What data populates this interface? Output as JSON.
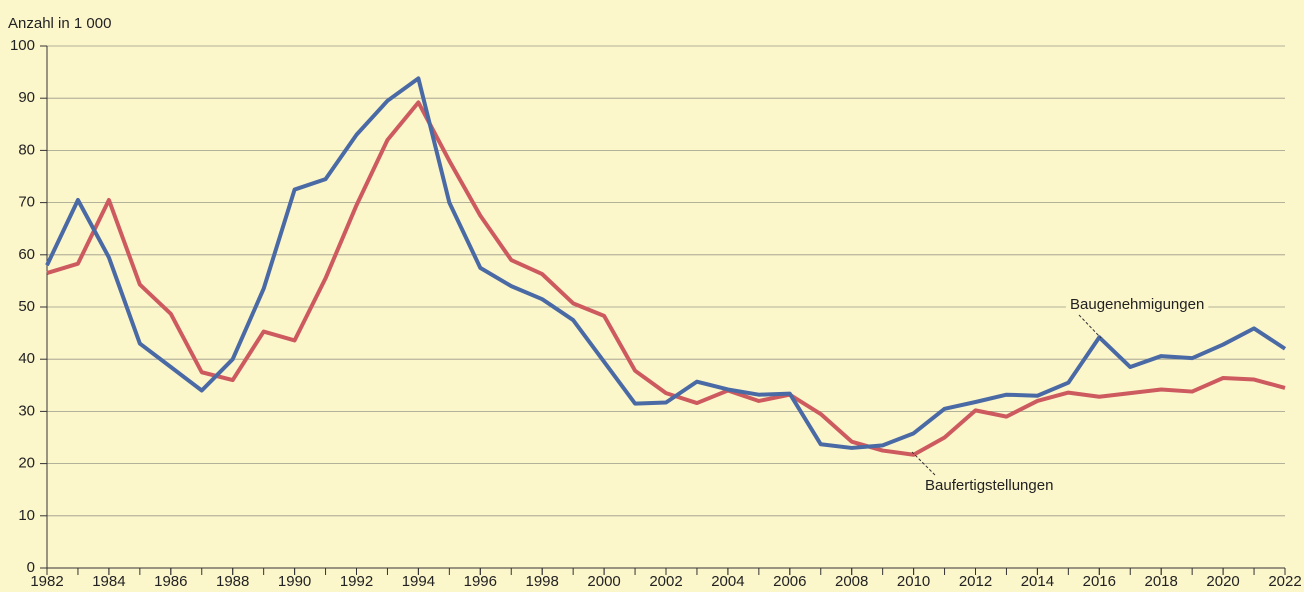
{
  "chart_data": {
    "type": "line",
    "y_axis_label": "Anzahl in 1 000",
    "x": [
      1982,
      1983,
      1984,
      1985,
      1986,
      1987,
      1988,
      1989,
      1990,
      1991,
      1992,
      1993,
      1994,
      1995,
      1996,
      1997,
      1998,
      1999,
      2000,
      2001,
      2002,
      2003,
      2004,
      2005,
      2006,
      2007,
      2008,
      2009,
      2010,
      2011,
      2012,
      2013,
      2014,
      2015,
      2016,
      2017,
      2018,
      2019,
      2020,
      2021,
      2022
    ],
    "series": [
      {
        "name": "Baugenehmigungen",
        "color": "#4a6aa5",
        "values": [
          58,
          70.5,
          59.5,
          43,
          38.5,
          34,
          40,
          53.5,
          72.5,
          74.5,
          83,
          89.5,
          93.8,
          70,
          57.5,
          54,
          51.5,
          47.5,
          39.5,
          31.5,
          31.7,
          35.7,
          34.2,
          33.2,
          33.4,
          23.7,
          23,
          23.5,
          25.8,
          30.5,
          31.8,
          33.2,
          33,
          35.5,
          44.2,
          38.5,
          40.6,
          40.2,
          42.8,
          45.9,
          42
        ]
      },
      {
        "name": "Baufertigstellungen",
        "color": "#cd5a5f",
        "values": [
          56.5,
          58.3,
          70.5,
          54.3,
          48.7,
          37.5,
          36,
          45.3,
          43.6,
          55.5,
          69.5,
          82,
          89.2,
          78,
          67.5,
          59,
          56.3,
          50.7,
          48.3,
          37.8,
          33.5,
          31.6,
          34,
          32,
          33.2,
          29.5,
          24.2,
          22.5,
          21.7,
          25,
          30.2,
          29,
          32,
          33.6,
          32.8,
          33.5,
          34.2,
          33.8,
          36.4,
          36.1,
          34.5
        ]
      }
    ],
    "xlim": [
      1982,
      2022
    ],
    "xticks": [
      1982,
      1984,
      1986,
      1988,
      1990,
      1992,
      1994,
      1996,
      1998,
      2000,
      2002,
      2004,
      2006,
      2008,
      2010,
      2012,
      2014,
      2016,
      2018,
      2020,
      2022
    ],
    "ylim": [
      0,
      100
    ],
    "yticks": [
      0,
      10,
      20,
      30,
      40,
      50,
      60,
      70,
      80,
      90,
      100
    ],
    "grid": true,
    "background": "#fcf6cb"
  }
}
